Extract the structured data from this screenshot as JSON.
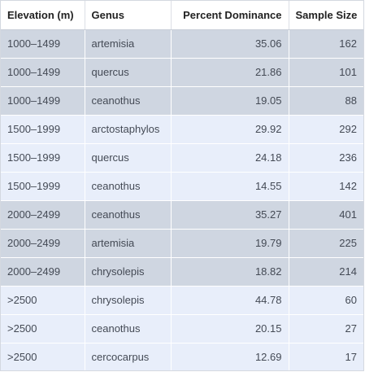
{
  "table": {
    "headers": [
      "Elevation (m)",
      "Genus",
      "Percent Dominance",
      "Sample Size"
    ],
    "rows": [
      {
        "elevation": "1000–1499",
        "genus": "artemisia",
        "percent": "35.06",
        "sample": "162",
        "group": "a"
      },
      {
        "elevation": "1000–1499",
        "genus": "quercus",
        "percent": "21.86",
        "sample": "101",
        "group": "a"
      },
      {
        "elevation": "1000–1499",
        "genus": "ceanothus",
        "percent": "19.05",
        "sample": "88",
        "group": "a"
      },
      {
        "elevation": "1500–1999",
        "genus": "arctostaphylos",
        "percent": "29.92",
        "sample": "292",
        "group": "b"
      },
      {
        "elevation": "1500–1999",
        "genus": "quercus",
        "percent": "24.18",
        "sample": "236",
        "group": "b"
      },
      {
        "elevation": "1500–1999",
        "genus": "ceanothus",
        "percent": "14.55",
        "sample": "142",
        "group": "b"
      },
      {
        "elevation": "2000–2499",
        "genus": "ceanothus",
        "percent": "35.27",
        "sample": "401",
        "group": "a"
      },
      {
        "elevation": "2000–2499",
        "genus": "artemisia",
        "percent": "19.79",
        "sample": "225",
        "group": "a"
      },
      {
        "elevation": "2000–2499",
        "genus": "chrysolepis",
        "percent": "18.82",
        "sample": "214",
        "group": "a"
      },
      {
        "elevation": ">2500",
        "genus": "chrysolepis",
        "percent": "44.78",
        "sample": "60",
        "group": "b"
      },
      {
        "elevation": ">2500",
        "genus": "ceanothus",
        "percent": "20.15",
        "sample": "27",
        "group": "b"
      },
      {
        "elevation": ">2500",
        "genus": "cercocarpus",
        "percent": "12.69",
        "sample": "17",
        "group": "b"
      }
    ]
  },
  "colors": {
    "group_a_row": "#cfd6e1",
    "group_b_row": "#e8eefa",
    "header_bg": "#ffffff"
  }
}
